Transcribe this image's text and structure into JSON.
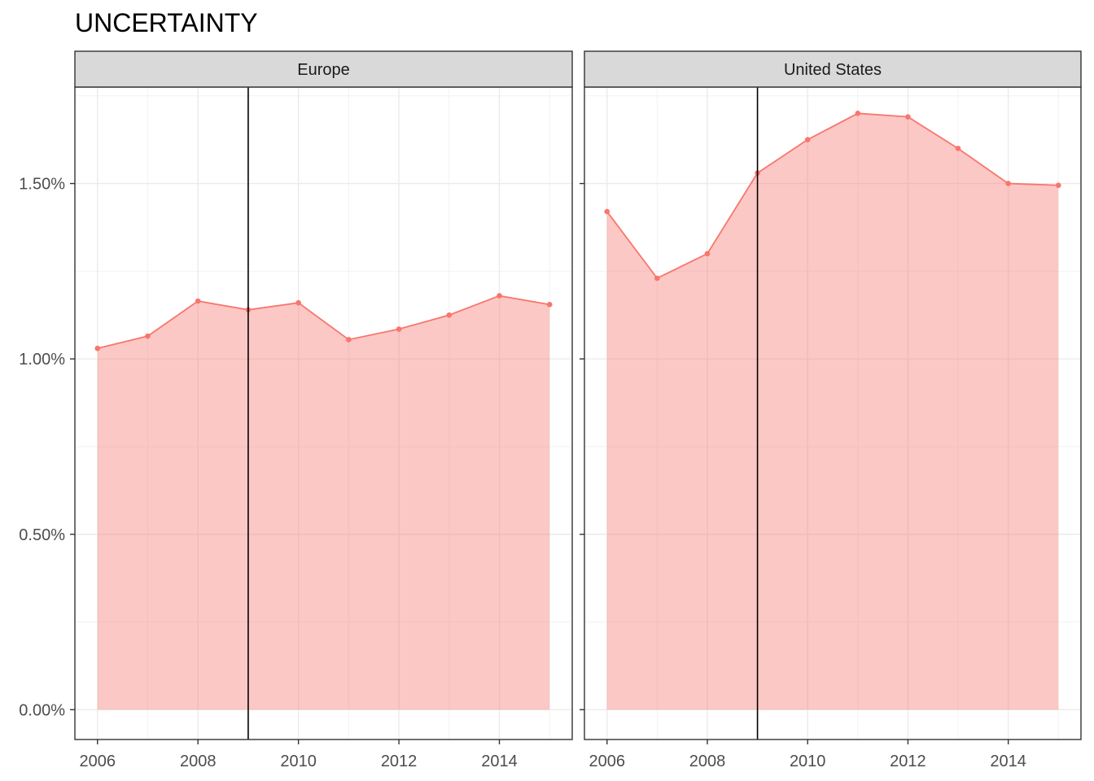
{
  "chart_data": {
    "type": "area",
    "title": "UNCERTAINTY",
    "xlabel": "",
    "ylabel": "",
    "x_ticks": [
      2006,
      2008,
      2010,
      2012,
      2014
    ],
    "y_ticks": [
      0,
      0.5,
      1.0,
      1.5
    ],
    "y_tick_labels": [
      "0.00%",
      "0.50%",
      "1.00%",
      "1.50%"
    ],
    "xlim": [
      2005.55,
      2015.45
    ],
    "ylim": [
      -0.085,
      1.775
    ],
    "y_unit": "%",
    "grid": true,
    "reference_line_x": 2009,
    "colors": {
      "line": "#f8766d",
      "fill": "#f8766d",
      "fill_opacity": 0.4,
      "reference": "#000000",
      "strip_bg": "#d9d9d9"
    },
    "panels": [
      {
        "name": "Europe",
        "x": [
          2006,
          2007,
          2008,
          2009,
          2010,
          2011,
          2012,
          2013,
          2014,
          2015
        ],
        "values": [
          1.03,
          1.065,
          1.165,
          1.14,
          1.16,
          1.055,
          1.085,
          1.125,
          1.18,
          1.155
        ]
      },
      {
        "name": "United States",
        "x": [
          2006,
          2007,
          2008,
          2009,
          2010,
          2011,
          2012,
          2013,
          2014,
          2015
        ],
        "values": [
          1.42,
          1.23,
          1.3,
          1.53,
          1.625,
          1.7,
          1.69,
          1.6,
          1.5,
          1.495
        ]
      }
    ]
  }
}
